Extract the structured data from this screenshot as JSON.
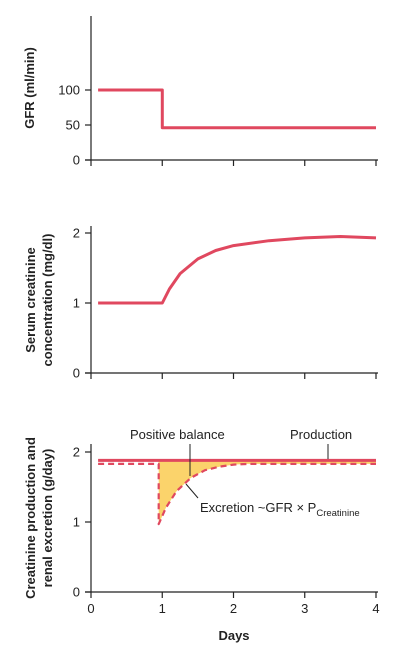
{
  "colors": {
    "curve": "#e0485f",
    "fill": "#fbd36b",
    "axis": "#222222"
  },
  "x_axis": {
    "label": "Days",
    "ticks": [
      "0",
      "1",
      "2",
      "3",
      "4"
    ]
  },
  "chart_data": [
    {
      "type": "line",
      "title": "",
      "ylabel": "GFR (ml/min)",
      "xlim": [
        0,
        4
      ],
      "ylim": [
        0,
        100
      ],
      "yticks": [
        "0",
        "50",
        "100"
      ],
      "grid": false,
      "series": [
        {
          "x": [
            0.1,
            1.0,
            1.0,
            4.0
          ],
          "y": [
            100,
            100,
            46,
            46
          ],
          "style": "solid"
        }
      ]
    },
    {
      "type": "line",
      "title": "",
      "ylabel_lines": [
        "Serum creatinine",
        "concentration (mg/dl)"
      ],
      "xlim": [
        0,
        4
      ],
      "ylim": [
        0,
        2
      ],
      "yticks": [
        "0",
        "1",
        "2"
      ],
      "grid": false,
      "series": [
        {
          "x": [
            0.1,
            1.0,
            1.1,
            1.25,
            1.5,
            1.75,
            2.0,
            2.5,
            3.0,
            3.5,
            4.0
          ],
          "y": [
            1.0,
            1.0,
            1.2,
            1.42,
            1.63,
            1.75,
            1.82,
            1.89,
            1.93,
            1.95,
            1.93
          ],
          "style": "solid"
        }
      ]
    },
    {
      "type": "line",
      "title": "",
      "ylabel_lines": [
        "Creatinine production and",
        "renal excretion (g/day)"
      ],
      "xlim": [
        0,
        4
      ],
      "ylim": [
        0,
        2
      ],
      "yticks": [
        "0",
        "1",
        "2"
      ],
      "grid": false,
      "series": [
        {
          "name": "Production",
          "x": [
            0.1,
            4.0
          ],
          "y": [
            1.88,
            1.88
          ],
          "style": "solid"
        },
        {
          "name": "Excretion",
          "x": [
            0.1,
            0.95,
            0.95,
            1.05,
            1.2,
            1.4,
            1.6,
            1.8,
            2.0,
            2.2,
            4.0
          ],
          "y": [
            1.83,
            1.83,
            0.97,
            1.2,
            1.44,
            1.63,
            1.74,
            1.79,
            1.82,
            1.83,
            1.83
          ],
          "style": "dashed"
        }
      ],
      "annotations": {
        "positive_balance": "Positive balance",
        "production": "Production",
        "excretion_main": "Excretion ~GFR × P",
        "excretion_sub": "Creatinine"
      }
    }
  ]
}
